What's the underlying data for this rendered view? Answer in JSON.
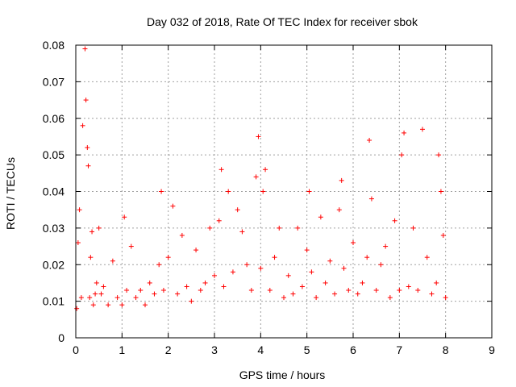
{
  "chart_data": {
    "type": "scatter",
    "title": "Day 032 of 2018, Rate Of TEC Index for receiver sbok",
    "xlabel": "GPS time / hours",
    "ylabel": "ROTI / TECUs",
    "xlim": [
      0,
      9
    ],
    "ylim": [
      0,
      0.08
    ],
    "x_ticks": [
      "0",
      "1",
      "2",
      "3",
      "4",
      "5",
      "6",
      "7",
      "8",
      "9"
    ],
    "y_ticks": [
      "0",
      "0.01",
      "0.02",
      "0.03",
      "0.04",
      "0.05",
      "0.06",
      "0.07",
      "0.08"
    ],
    "grid": true,
    "marker": "+",
    "series_color": "#ff0000",
    "series": [
      {
        "name": "ROTI",
        "x": [
          0.02,
          0.05,
          0.08,
          0.12,
          0.15,
          0.2,
          0.22,
          0.25,
          0.27,
          0.3,
          0.32,
          0.35,
          0.38,
          0.42,
          0.45,
          0.5,
          0.55,
          0.6,
          0.7,
          0.8,
          0.9,
          1.0,
          1.05,
          1.1,
          1.2,
          1.3,
          1.4,
          1.5,
          1.6,
          1.7,
          1.8,
          1.85,
          1.9,
          2.0,
          2.1,
          2.2,
          2.3,
          2.4,
          2.5,
          2.6,
          2.7,
          2.8,
          2.9,
          3.0,
          3.1,
          3.15,
          3.2,
          3.3,
          3.4,
          3.5,
          3.6,
          3.7,
          3.8,
          3.9,
          3.95,
          4.0,
          4.05,
          4.1,
          4.2,
          4.3,
          4.4,
          4.5,
          4.6,
          4.7,
          4.8,
          4.9,
          5.0,
          5.05,
          5.1,
          5.2,
          5.3,
          5.4,
          5.5,
          5.6,
          5.7,
          5.75,
          5.8,
          5.9,
          6.0,
          6.1,
          6.2,
          6.3,
          6.35,
          6.4,
          6.5,
          6.6,
          6.7,
          6.8,
          6.9,
          7.0,
          7.05,
          7.1,
          7.2,
          7.3,
          7.4,
          7.5,
          7.6,
          7.7,
          7.8,
          7.85,
          7.9,
          7.95,
          8.0
        ],
        "y": [
          0.008,
          0.026,
          0.035,
          0.011,
          0.058,
          0.079,
          0.065,
          0.052,
          0.047,
          0.011,
          0.022,
          0.029,
          0.009,
          0.012,
          0.015,
          0.03,
          0.012,
          0.014,
          0.009,
          0.021,
          0.011,
          0.009,
          0.033,
          0.013,
          0.025,
          0.011,
          0.013,
          0.009,
          0.015,
          0.012,
          0.02,
          0.04,
          0.013,
          0.022,
          0.036,
          0.012,
          0.028,
          0.014,
          0.01,
          0.024,
          0.013,
          0.015,
          0.03,
          0.017,
          0.032,
          0.046,
          0.014,
          0.04,
          0.018,
          0.035,
          0.029,
          0.02,
          0.013,
          0.044,
          0.055,
          0.019,
          0.04,
          0.046,
          0.013,
          0.022,
          0.03,
          0.011,
          0.017,
          0.012,
          0.03,
          0.014,
          0.024,
          0.04,
          0.018,
          0.011,
          0.033,
          0.015,
          0.021,
          0.012,
          0.035,
          0.043,
          0.019,
          0.013,
          0.026,
          0.012,
          0.015,
          0.022,
          0.054,
          0.038,
          0.013,
          0.02,
          0.025,
          0.011,
          0.032,
          0.013,
          0.05,
          0.056,
          0.014,
          0.03,
          0.013,
          0.057,
          0.022,
          0.012,
          0.015,
          0.05,
          0.04,
          0.028,
          0.011
        ]
      }
    ]
  }
}
